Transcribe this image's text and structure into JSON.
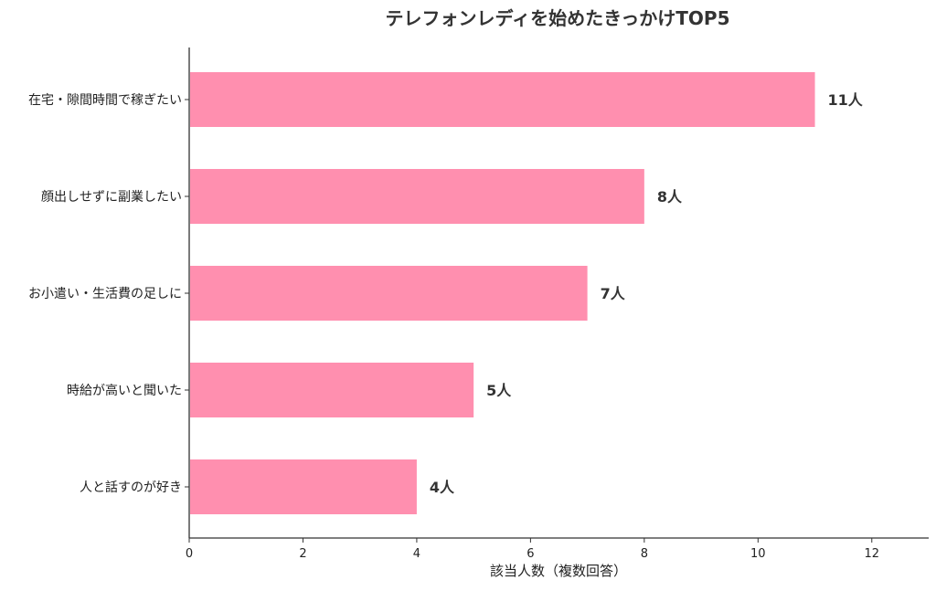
{
  "chart_data": {
    "type": "bar",
    "orientation": "horizontal",
    "title": "テレフォンレディを始めたきっかけTOP5",
    "xlabel": "該当人数（複数回答）",
    "ylabel": "",
    "categories": [
      "在宅・隙間時間で稼ぎたい",
      "顔出しせずに副業したい",
      "お小遣い・生活費の足しに",
      "時給が高いと聞いた",
      "人と話すのが好き"
    ],
    "values": [
      11,
      8,
      7,
      5,
      4
    ],
    "value_labels": [
      "11人",
      "8人",
      "7人",
      "5人",
      "4人"
    ],
    "xlim": [
      0,
      13
    ],
    "xticks": [
      0,
      2,
      4,
      6,
      8,
      10,
      12
    ],
    "grid": false,
    "bar_color": "#FF8FAF"
  }
}
